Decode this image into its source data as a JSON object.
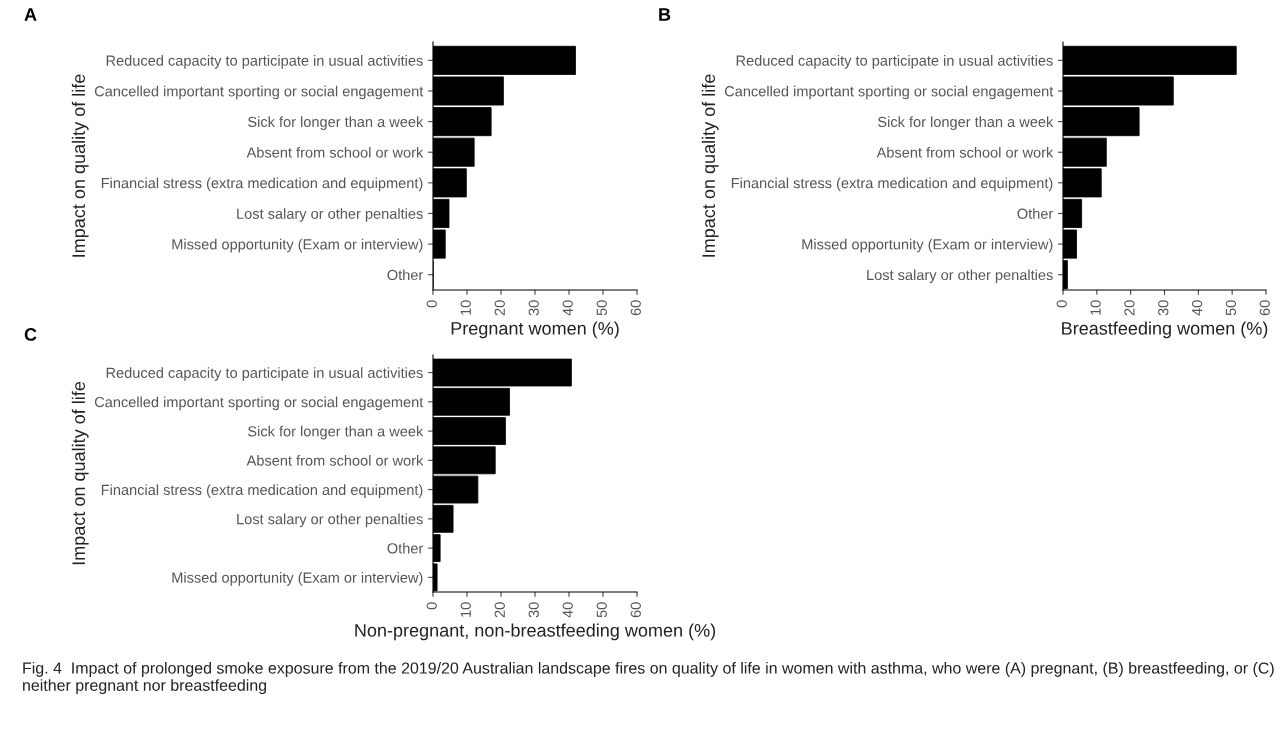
{
  "chart_data": [
    {
      "type": "bar",
      "orientation": "horizontal",
      "annotations": [
        "A"
      ],
      "ylabel": "Impact on quality of life",
      "xlabel": "Pregnant women (%)",
      "categories": [
        "Reduced capacity to participate in usual activities",
        "Cancelled important sporting or social engagement",
        "Sick for longer than a week",
        "Absent from school or work",
        "Financial stress (extra medication and equipment)",
        "Lost salary or other penalties",
        "Missed opportunity (Exam or interview)",
        "Other"
      ],
      "values": [
        41.9,
        20.7,
        17.1,
        12.1,
        9.8,
        4.7,
        3.6,
        0
      ],
      "color": "#000000",
      "xlim": [
        0,
        60
      ],
      "xticks": [
        0,
        10,
        20,
        30,
        40,
        50,
        60
      ],
      "grid": false
    },
    {
      "type": "bar",
      "orientation": "horizontal",
      "annotations": [
        "B"
      ],
      "ylabel": "Impact on quality of life",
      "xlabel": "Breastfeeding women (%)",
      "categories": [
        "Reduced capacity to participate in usual activities",
        "Cancelled important sporting or social engagement",
        "Sick for longer than a week",
        "Absent from school or work",
        "Financial stress (extra medication and equipment)",
        "Other",
        "Missed opportunity (Exam or interview)",
        "Lost salary or other penalties"
      ],
      "values": [
        51.2,
        32.6,
        22.5,
        12.8,
        11.3,
        5.5,
        4.0,
        1.3
      ],
      "color": "#000000",
      "xlim": [
        0,
        60
      ],
      "xticks": [
        0,
        10,
        20,
        30,
        40,
        50,
        60
      ],
      "grid": false
    },
    {
      "type": "bar",
      "orientation": "horizontal",
      "ylabel": "Impact on quality of life",
      "xlabel": "Non-pregnant, non-breastfeeding women (%)",
      "annotations": [
        "C",
        "Fig. 4  Impact of prolonged smoke exposure from the 2019/20 Australian landscape fires on quality of life in women with asthma, who were (A) pregnant, (B) breastfeeding, or (C) neither pregnant nor breastfeeding"
      ],
      "categories": [
        "Reduced capacity to participate in usual activities",
        "Cancelled important sporting or social engagement",
        "Sick for longer than a week",
        "Absent from school or work",
        "Financial stress (extra medication and equipment)",
        "Lost salary or other penalties",
        "Other",
        "Missed opportunity (Exam or interview)"
      ],
      "values": [
        40.7,
        22.5,
        21.3,
        18.3,
        13.2,
        5.9,
        2.1,
        1.2
      ],
      "color": "#000000",
      "xlim": [
        0,
        60
      ],
      "xticks": [
        0,
        10,
        20,
        30,
        40,
        50,
        60
      ],
      "grid": false
    }
  ]
}
